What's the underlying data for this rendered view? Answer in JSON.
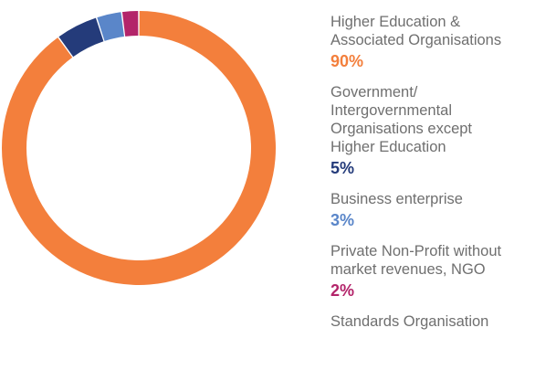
{
  "chart_data": {
    "type": "pie",
    "donut": true,
    "segments": [
      {
        "label": "Higher Education &\nAssociated Organisations",
        "value_label": "90%",
        "value": 90,
        "color": "#f37f3c"
      },
      {
        "label": "Government/\nIntergovernmental\nOrganisations except\nHigher Education",
        "value_label": "5%",
        "value": 5,
        "color": "#243b7a"
      },
      {
        "label": "Business enterprise",
        "value_label": "3%",
        "value": 3,
        "color": "#5a86c9"
      },
      {
        "label": "Private Non-Profit without\nmarket revenues, NGO",
        "value_label": "2%",
        "value": 2,
        "color": "#b3246a"
      },
      {
        "label": "Standards Organisation",
        "value_label": "",
        "value": 0,
        "color": "#999999"
      }
    ],
    "legend_position": "right"
  }
}
